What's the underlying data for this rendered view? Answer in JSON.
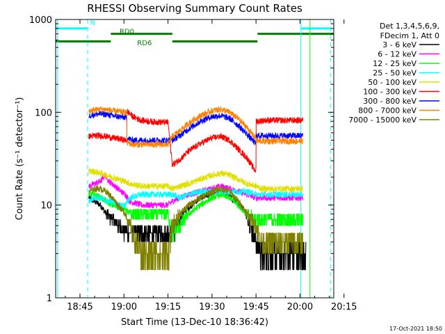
{
  "chart_data": {
    "type": "line",
    "title": "RHESSI Observing Summary Count Rates",
    "xlabel": "Start Time (13-Dec-10 18:36:42)",
    "ylabel": "Count Rate (s⁻¹ detector⁻¹)",
    "x_range_min": [
      36.7,
      131.5
    ],
    "x_ticks": [
      {
        "value": 45,
        "label": "18:45"
      },
      {
        "value": 60,
        "label": "19:00"
      },
      {
        "value": 75,
        "label": "19:15"
      },
      {
        "value": 90,
        "label": "19:30"
      },
      {
        "value": 105,
        "label": "19:45"
      },
      {
        "value": 120,
        "label": "20:00"
      },
      {
        "value": 135,
        "label": "20:15"
      }
    ],
    "y_scale": "log",
    "ylim": [
      1,
      1000
    ],
    "y_ticks": [
      {
        "value": 1,
        "label": "1"
      },
      {
        "value": 10,
        "label": "10"
      },
      {
        "value": 100,
        "label": "100"
      },
      {
        "value": 1000,
        "label": "1000"
      }
    ],
    "legend_header": [
      "Det 1,3,4,5,6,9,",
      "FDecim 1, Att 0"
    ],
    "legend_placement": "right",
    "series": [
      {
        "name": "3 - 6 keV",
        "color": "#000000",
        "points": [
          [
            48,
            12
          ],
          [
            50,
            11
          ],
          [
            52,
            10
          ],
          [
            54,
            8
          ],
          [
            56,
            7
          ],
          [
            58,
            6
          ],
          [
            61,
            5
          ],
          [
            65,
            5
          ],
          [
            70,
            5
          ],
          [
            75,
            5
          ],
          [
            76.5,
            5
          ],
          [
            78,
            6
          ],
          [
            80,
            8
          ],
          [
            83,
            10
          ],
          [
            86,
            12
          ],
          [
            89,
            13
          ],
          [
            92,
            14
          ],
          [
            95,
            13
          ],
          [
            98,
            11
          ],
          [
            101,
            9
          ],
          [
            103,
            6
          ],
          [
            105,
            4
          ],
          [
            107,
            3
          ],
          [
            112,
            3
          ],
          [
            118,
            3
          ],
          [
            121,
            3
          ],
          [
            122,
            3
          ]
        ]
      },
      {
        "name": "6 - 12 keV",
        "color": "#ff00ff",
        "points": [
          [
            48,
            16
          ],
          [
            50,
            17
          ],
          [
            52,
            18
          ],
          [
            53.5,
            21
          ],
          [
            55,
            18
          ],
          [
            57,
            16
          ],
          [
            59,
            14
          ],
          [
            60.5,
            13
          ],
          [
            62,
            11
          ],
          [
            66,
            10
          ],
          [
            70,
            10
          ],
          [
            75,
            10
          ],
          [
            76.5,
            11
          ],
          [
            79,
            12
          ],
          [
            82,
            13
          ],
          [
            86,
            14
          ],
          [
            90,
            15
          ],
          [
            93,
            16
          ],
          [
            96,
            15
          ],
          [
            99,
            14
          ],
          [
            102,
            13
          ],
          [
            105,
            12
          ],
          [
            107,
            12
          ],
          [
            112,
            12
          ],
          [
            118,
            12
          ],
          [
            121,
            12
          ]
        ]
      },
      {
        "name": "12 - 25 keV",
        "color": "#00ff00",
        "points": [
          [
            48,
            13
          ],
          [
            50,
            13
          ],
          [
            52,
            12
          ],
          [
            54,
            11
          ],
          [
            56,
            10
          ],
          [
            58,
            9.5
          ],
          [
            60.5,
            9
          ],
          [
            62,
            8
          ],
          [
            66,
            8
          ],
          [
            70,
            8
          ],
          [
            75,
            8
          ],
          [
            76.5,
            5
          ],
          [
            79,
            6
          ],
          [
            82,
            8
          ],
          [
            86,
            10
          ],
          [
            90,
            12
          ],
          [
            93,
            13
          ],
          [
            96,
            12
          ],
          [
            99,
            10
          ],
          [
            102,
            8
          ],
          [
            105,
            7
          ],
          [
            107,
            7
          ],
          [
            112,
            7
          ],
          [
            118,
            7
          ],
          [
            121,
            7
          ]
        ]
      },
      {
        "name": "25 - 50 keV",
        "color": "#00ffff",
        "points": [
          [
            48,
            11
          ],
          [
            50,
            12
          ],
          [
            52,
            12
          ],
          [
            54,
            11
          ],
          [
            56,
            11
          ],
          [
            58,
            10
          ],
          [
            60.5,
            10
          ],
          [
            62,
            12
          ],
          [
            66,
            13
          ],
          [
            70,
            13
          ],
          [
            75,
            13
          ],
          [
            76.5,
            13
          ],
          [
            79,
            12
          ],
          [
            82,
            13
          ],
          [
            86,
            14
          ],
          [
            90,
            14
          ],
          [
            93,
            14
          ],
          [
            96,
            14
          ],
          [
            99,
            14
          ],
          [
            102,
            14
          ],
          [
            105,
            13
          ],
          [
            107,
            13
          ],
          [
            112,
            13
          ],
          [
            118,
            13
          ],
          [
            121,
            13
          ]
        ]
      },
      {
        "name": "50 - 100 keV",
        "color": "#e0e000",
        "points": [
          [
            48,
            23
          ],
          [
            50,
            23
          ],
          [
            52,
            22
          ],
          [
            54,
            21
          ],
          [
            56,
            20
          ],
          [
            58,
            19
          ],
          [
            60.5,
            18
          ],
          [
            62,
            17
          ],
          [
            66,
            16
          ],
          [
            70,
            16
          ],
          [
            75,
            16
          ],
          [
            76.5,
            15
          ],
          [
            79,
            16
          ],
          [
            82,
            17
          ],
          [
            86,
            19
          ],
          [
            90,
            21
          ],
          [
            93,
            22
          ],
          [
            96,
            21
          ],
          [
            99,
            19
          ],
          [
            102,
            17
          ],
          [
            105,
            16
          ],
          [
            107,
            15
          ],
          [
            112,
            15
          ],
          [
            118,
            15
          ],
          [
            121,
            15
          ]
        ]
      },
      {
        "name": "100 - 300 keV",
        "color": "#ff0000",
        "points": [
          [
            48,
            55
          ],
          [
            50,
            56
          ],
          [
            52,
            56
          ],
          [
            54,
            55
          ],
          [
            56,
            53
          ],
          [
            58,
            52
          ],
          [
            60.5,
            50
          ],
          [
            61.5,
            100
          ],
          [
            63,
            90
          ],
          [
            66,
            82
          ],
          [
            70,
            79
          ],
          [
            75,
            78
          ],
          [
            76.5,
            27
          ],
          [
            79,
            31
          ],
          [
            82,
            38
          ],
          [
            86,
            46
          ],
          [
            90,
            53
          ],
          [
            93,
            55
          ],
          [
            96,
            50
          ],
          [
            99,
            40
          ],
          [
            102,
            32
          ],
          [
            104.5,
            24
          ],
          [
            105.5,
            80
          ],
          [
            108,
            82
          ],
          [
            112,
            82
          ],
          [
            118,
            82
          ],
          [
            121,
            82
          ]
        ]
      },
      {
        "name": "300 - 800 keV",
        "color": "#0000ff",
        "points": [
          [
            48,
            92
          ],
          [
            50,
            95
          ],
          [
            52,
            96
          ],
          [
            54,
            95
          ],
          [
            56,
            92
          ],
          [
            58,
            90
          ],
          [
            60.5,
            88
          ],
          [
            61.5,
            52
          ],
          [
            63,
            50
          ],
          [
            66,
            50
          ],
          [
            70,
            50
          ],
          [
            75,
            50
          ],
          [
            76.5,
            50
          ],
          [
            79,
            56
          ],
          [
            82,
            66
          ],
          [
            86,
            80
          ],
          [
            90,
            90
          ],
          [
            93,
            92
          ],
          [
            96,
            86
          ],
          [
            99,
            72
          ],
          [
            102,
            58
          ],
          [
            104.5,
            47
          ],
          [
            105.5,
            56
          ],
          [
            108,
            56
          ],
          [
            112,
            56
          ],
          [
            118,
            56
          ],
          [
            121,
            56
          ]
        ]
      },
      {
        "name": "800 - 7000 keV",
        "color": "#ff8000",
        "points": [
          [
            48,
            103
          ],
          [
            50,
            106
          ],
          [
            52,
            108
          ],
          [
            54,
            107
          ],
          [
            56,
            104
          ],
          [
            58,
            102
          ],
          [
            60.5,
            100
          ],
          [
            61.5,
            47
          ],
          [
            63,
            45
          ],
          [
            66,
            45
          ],
          [
            70,
            45
          ],
          [
            75,
            45
          ],
          [
            76.5,
            55
          ],
          [
            79,
            63
          ],
          [
            82,
            76
          ],
          [
            86,
            92
          ],
          [
            90,
            104
          ],
          [
            93,
            108
          ],
          [
            96,
            100
          ],
          [
            99,
            85
          ],
          [
            102,
            68
          ],
          [
            104.5,
            54
          ],
          [
            105.5,
            49
          ],
          [
            108,
            49
          ],
          [
            112,
            49
          ],
          [
            118,
            49
          ],
          [
            121,
            49
          ]
        ]
      },
      {
        "name": "7000 - 15000 keV",
        "color": "#808000",
        "points": [
          [
            48,
            14
          ],
          [
            50,
            15
          ],
          [
            52,
            15
          ],
          [
            54,
            14
          ],
          [
            56,
            12
          ],
          [
            58,
            10
          ],
          [
            60.5,
            8
          ],
          [
            62,
            6
          ],
          [
            64,
            4
          ],
          [
            66,
            3
          ],
          [
            70,
            3
          ],
          [
            75,
            3
          ],
          [
            76.5,
            6
          ],
          [
            79,
            8
          ],
          [
            82,
            10
          ],
          [
            86,
            12
          ],
          [
            90,
            14
          ],
          [
            93,
            15
          ],
          [
            96,
            14
          ],
          [
            99,
            11
          ],
          [
            102,
            8
          ],
          [
            105,
            6
          ],
          [
            107,
            4
          ],
          [
            112,
            4
          ],
          [
            118,
            4
          ],
          [
            121,
            4
          ]
        ]
      }
    ],
    "annotations": [
      {
        "text": "N",
        "color": "#00ffff"
      },
      {
        "text": "RD0",
        "color": "#008000"
      },
      {
        "text": "RD6",
        "color": "#008000"
      }
    ],
    "vertical_markers": [
      {
        "x": 37.4,
        "style": "solid",
        "color": "#00ffff"
      },
      {
        "x": 47.6,
        "style": "dashed",
        "color": "#00ffff"
      },
      {
        "x": 120.3,
        "style": "solid",
        "color": "#00ffff"
      },
      {
        "x": 130.5,
        "style": "dashed",
        "color": "#00ffff"
      },
      {
        "x": 123.4,
        "style": "solid",
        "color": "#00ff00"
      }
    ],
    "flag_bars": [
      {
        "name": "N",
        "color": "#00ffff",
        "segments": [
          [
            36.7,
            47.6
          ],
          [
            120.3,
            130.5
          ]
        ]
      },
      {
        "name": "RD0",
        "color": "#008000",
        "segments": [
          [
            55.5,
            76.5
          ],
          [
            105.5,
            131.5
          ]
        ]
      },
      {
        "name": "RD6",
        "color": "#008000",
        "segments": [
          [
            36.7,
            55.5
          ],
          [
            76.5,
            105.5
          ]
        ]
      }
    ]
  },
  "footer": {
    "timestamp": "17-Oct-2021 18:50"
  }
}
